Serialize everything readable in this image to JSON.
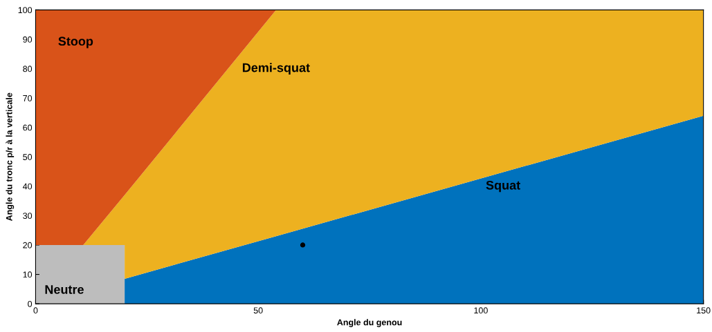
{
  "chart_data": {
    "type": "area",
    "stacked": true,
    "xlabel": "Angle du genou",
    "ylabel": "Angle du tronc p/r à la verticale",
    "xlim": [
      0,
      150
    ],
    "ylim": [
      0,
      100
    ],
    "xticks": [
      0,
      50,
      100,
      150
    ],
    "yticks": [
      0,
      10,
      20,
      30,
      40,
      50,
      60,
      70,
      80,
      90,
      100
    ],
    "series": [
      {
        "name": "Neutre",
        "color": "#bdbdbd",
        "x": [
          0,
          10.7,
          20,
          20,
          54,
          150
        ],
        "values": [
          20,
          20,
          20,
          0,
          0,
          0
        ]
      },
      {
        "name": "Squat",
        "color": "#0072bd",
        "x": [
          0,
          10.7,
          20,
          20,
          54,
          150
        ],
        "values": [
          0,
          0,
          0,
          8.5,
          23,
          64
        ]
      },
      {
        "name": "Demi-squat",
        "color": "#edb120",
        "x": [
          0,
          10.7,
          20,
          20,
          54,
          150
        ],
        "values": [
          0,
          0,
          17,
          28.5,
          77,
          36
        ]
      },
      {
        "name": "Stoop",
        "color": "#d95319",
        "x": [
          0,
          10.7,
          20,
          20,
          54,
          150
        ],
        "values": [
          80,
          80,
          63,
          63,
          0,
          0
        ]
      },
      {
        "type": "scatter",
        "color": "#000000",
        "x": [
          60
        ],
        "values": [
          20
        ],
        "marker": "circle"
      }
    ]
  }
}
